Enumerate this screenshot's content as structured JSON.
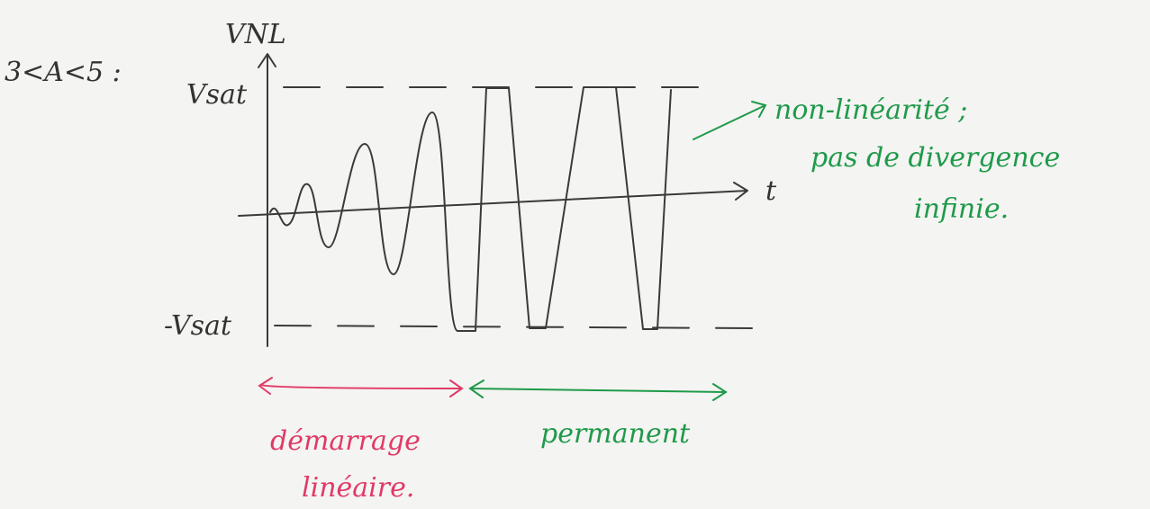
{
  "condition": "3<A<5 :",
  "axes": {
    "y_label": "VNL",
    "x_label": "t",
    "upper_level": "Vsat",
    "lower_level": "-Vsat"
  },
  "annotations": {
    "nonlinear": [
      "non-linéarité ;",
      "pas de divergence",
      "infinie."
    ],
    "startup": [
      "démarrage",
      "linéaire."
    ],
    "steady": "permanent"
  }
}
